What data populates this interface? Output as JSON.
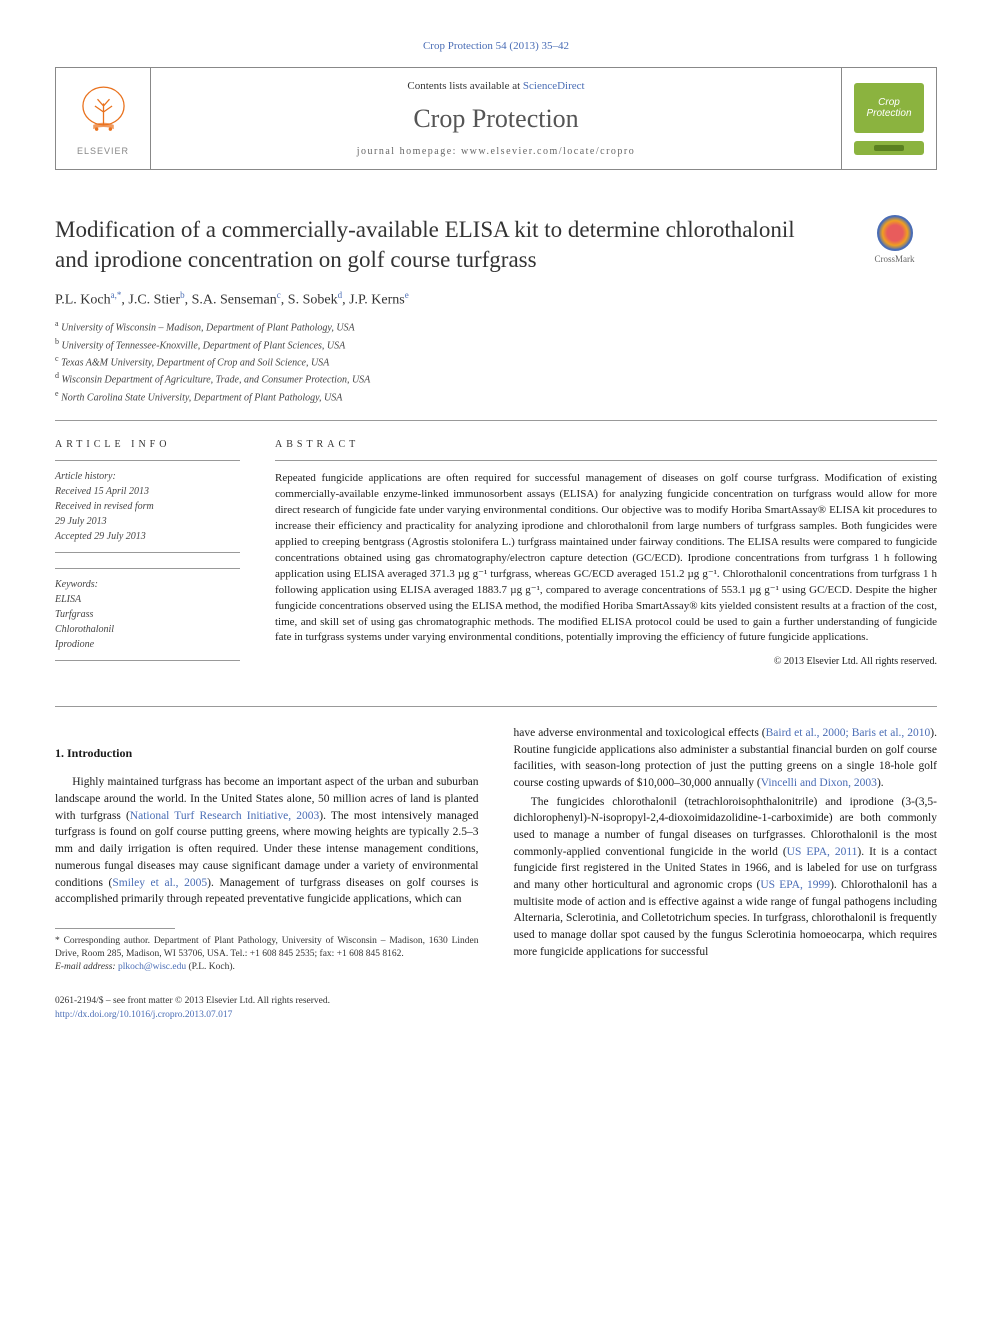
{
  "colors": {
    "link": "#4a6db5",
    "text": "#1a1a1a",
    "muted": "#666",
    "border": "#999",
    "badge_bg": "#8bb33f",
    "elsevier_orange": "#e9711c"
  },
  "top_link": "Crop Protection 54 (2013) 35–42",
  "header": {
    "contents_prefix": "Contents lists available at ",
    "contents_link": "ScienceDirect",
    "journal_name": "Crop Protection",
    "homepage_label": "journal homepage: www.elsevier.com/locate/cropro",
    "publisher": "ELSEVIER",
    "cp_line1": "Crop",
    "cp_line2": "Protection"
  },
  "title": "Modification of a commercially-available ELISA kit to determine chlorothalonil and iprodione concentration on golf course turfgrass",
  "crossmark_label": "CrossMark",
  "authors_html": "P.L. Koch|a,*|, J.C. Stier|b|, S.A. Senseman|c|, S. Sobek|d|, J.P. Kerns|e|",
  "affiliations": [
    {
      "sup": "a",
      "text": "University of Wisconsin – Madison, Department of Plant Pathology, USA"
    },
    {
      "sup": "b",
      "text": "University of Tennessee-Knoxville, Department of Plant Sciences, USA"
    },
    {
      "sup": "c",
      "text": "Texas A&M University, Department of Crop and Soil Science, USA"
    },
    {
      "sup": "d",
      "text": "Wisconsin Department of Agriculture, Trade, and Consumer Protection, USA"
    },
    {
      "sup": "e",
      "text": "North Carolina State University, Department of Plant Pathology, USA"
    }
  ],
  "article_info": {
    "label": "ARTICLE INFO",
    "history_hdr": "Article history:",
    "history_lines": [
      "Received 15 April 2013",
      "Received in revised form",
      "29 July 2013",
      "Accepted 29 July 2013"
    ],
    "keywords_hdr": "Keywords:",
    "keywords": [
      "ELISA",
      "Turfgrass",
      "Chlorothalonil",
      "Iprodione"
    ]
  },
  "abstract": {
    "label": "ABSTRACT",
    "text": "Repeated fungicide applications are often required for successful management of diseases on golf course turfgrass. Modification of existing commercially-available enzyme-linked immunosorbent assays (ELISA) for analyzing fungicide concentration on turfgrass would allow for more direct research of fungicide fate under varying environmental conditions. Our objective was to modify Horiba SmartAssay® ELISA kit procedures to increase their efficiency and practicality for analyzing iprodione and chlorothalonil from large numbers of turfgrass samples. Both fungicides were applied to creeping bentgrass (Agrostis stolonifera L.) turfgrass maintained under fairway conditions. The ELISA results were compared to fungicide concentrations obtained using gas chromatography/electron capture detection (GC/ECD). Iprodione concentrations from turfgrass 1 h following application using ELISA averaged 371.3 µg g⁻¹ turfgrass, whereas GC/ECD averaged 151.2 µg g⁻¹. Chlorothalonil concentrations from turfgrass 1 h following application using ELISA averaged 1883.7 µg g⁻¹, compared to average concentrations of 553.1 µg g⁻¹ using GC/ECD. Despite the higher fungicide concentrations observed using the ELISA method, the modified Horiba SmartAssay® kits yielded consistent results at a fraction of the cost, time, and skill set of using gas chromatographic methods. The modified ELISA protocol could be used to gain a further understanding of fungicide fate in turfgrass systems under varying environmental conditions, potentially improving the efficiency of future fungicide applications.",
    "copyright": "© 2013 Elsevier Ltd. All rights reserved."
  },
  "section_title": "1. Introduction",
  "body": {
    "left_p1_pre": "Highly maintained turfgrass has become an important aspect of the urban and suburban landscape around the world. In the United States alone, 50 million acres of land is planted with turfgrass (",
    "left_p1_cite1": "National Turf Research Initiative, 2003",
    "left_p1_mid": "). The most intensively managed turfgrass is found on golf course putting greens, where mowing heights are typically 2.5–3 mm and daily irrigation is often required. Under these intense management conditions, numerous fungal diseases may cause significant damage under a variety of environmental conditions (",
    "left_p1_cite2": "Smiley et al., 2005",
    "left_p1_post": "). Management of turfgrass diseases on golf courses is accomplished primarily through repeated preventative fungicide applications, which can",
    "right_p1_pre": "have adverse environmental and toxicological effects (",
    "right_p1_cite1": "Baird et al., 2000; Baris et al., 2010",
    "right_p1_mid": "). Routine fungicide applications also administer a substantial financial burden on golf course facilities, with season-long protection of just the putting greens on a single 18-hole golf course costing upwards of $10,000–30,000 annually (",
    "right_p1_cite2": "Vincelli and Dixon, 2003",
    "right_p1_post": ").",
    "right_p2_pre": "The fungicides chlorothalonil (tetrachloroisophthalonitrile) and iprodione (3-(3,5-dichlorophenyl)-N-isopropyl-2,4-dioxoimidazolidine-1-carboximide) are both commonly used to manage a number of fungal diseases on turfgrasses. Chlorothalonil is the most commonly-applied conventional fungicide in the world (",
    "right_p2_cite1": "US EPA, 2011",
    "right_p2_mid": "). It is a contact fungicide first registered in the United States in 1966, and is labeled for use on turfgrass and many other horticultural and agronomic crops (",
    "right_p2_cite2": "US EPA, 1999",
    "right_p2_post": "). Chlorothalonil has a multisite mode of action and is effective against a wide range of fungal pathogens including Alternaria, Sclerotinia, and Colletotrichum species. In turfgrass, chlorothalonil is frequently used to manage dollar spot caused by the fungus Sclerotinia homoeocarpa, which requires more fungicide applications for successful"
  },
  "footnotes": {
    "corr_author": "* Corresponding author. Department of Plant Pathology, University of Wisconsin – Madison, 1630 Linden Drive, Room 285, Madison, WI 53706, USA. Tel.: +1 608 845 2535; fax: +1 608 845 8162.",
    "email_label": "E-mail address: ",
    "email": "plkoch@wisc.edu",
    "email_who": " (P.L. Koch)."
  },
  "bottom": {
    "issn": "0261-2194/$ – see front matter © 2013 Elsevier Ltd. All rights reserved.",
    "doi": "http://dx.doi.org/10.1016/j.cropro.2013.07.017"
  }
}
